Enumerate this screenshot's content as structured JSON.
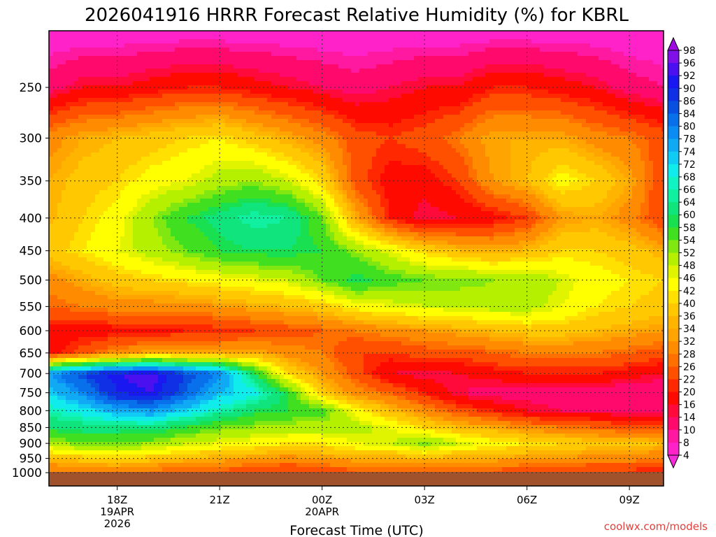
{
  "chart_data": {
    "type": "heatmap",
    "title": "2026041916 HRRR Forecast Relative Humidity (%) for KBRL",
    "xlabel": "Forecast Time (UTC)",
    "ylabel": "",
    "x_ticks": [
      {
        "hour": 18,
        "lines": [
          "18Z",
          "19APR",
          "2026"
        ]
      },
      {
        "hour": 21,
        "lines": [
          "21Z"
        ]
      },
      {
        "hour": 24,
        "lines": [
          "00Z",
          "20APR"
        ]
      },
      {
        "hour": 27,
        "lines": [
          "03Z"
        ]
      },
      {
        "hour": 30,
        "lines": [
          "06Z"
        ]
      },
      {
        "hour": 33,
        "lines": [
          "09Z"
        ]
      }
    ],
    "xlim_hours": [
      16,
      34
    ],
    "y_ticks": [
      250,
      300,
      350,
      400,
      450,
      500,
      550,
      600,
      650,
      700,
      750,
      800,
      850,
      900,
      950,
      1000
    ],
    "ylim_hPa": [
      1000,
      200
    ],
    "y_scale": "log-pressure",
    "grid": true,
    "colorbar": {
      "labels": [
        98,
        96,
        92,
        90,
        86,
        84,
        80,
        78,
        74,
        72,
        68,
        66,
        64,
        60,
        58,
        54,
        52,
        48,
        46,
        42,
        40,
        36,
        34,
        32,
        28,
        26,
        22,
        20,
        16,
        14,
        10,
        8,
        4
      ],
      "colors": [
        "#a00ae0",
        "#8010e8",
        "#4a10f0",
        "#1a18f0",
        "#1030e6",
        "#0a50e0",
        "#0870ea",
        "#0a8cf4",
        "#10aaf4",
        "#10ccf4",
        "#10ecec",
        "#10f4c4",
        "#10f0a0",
        "#10e47c",
        "#18e050",
        "#40e020",
        "#80e810",
        "#b4f000",
        "#e0f400",
        "#ffff00",
        "#ffe000",
        "#ffc800",
        "#ffb400",
        "#ffa400",
        "#ff8c00",
        "#ff7000",
        "#ff5000",
        "#ff2800",
        "#ff0a00",
        "#ff0a3a",
        "#ff0a6c",
        "#ff18a0",
        "#ff22c8",
        "#f32bd8"
      ],
      "placement": "right"
    },
    "levels_hPa": [
      200,
      250,
      300,
      350,
      400,
      450,
      500,
      550,
      600,
      650,
      700,
      750,
      800,
      850,
      900,
      950,
      990
    ],
    "columns": [
      {
        "hour": 16,
        "rh": [
          4,
          12,
          30,
          34,
          35,
          38,
          30,
          26,
          18,
          18,
          78,
          72,
          66,
          60,
          50,
          36,
          28
        ]
      },
      {
        "hour": 17,
        "rh": [
          4,
          16,
          34,
          38,
          40,
          42,
          34,
          28,
          18,
          24,
          86,
          80,
          70,
          62,
          54,
          38,
          30
        ]
      },
      {
        "hour": 18,
        "rh": [
          4,
          16,
          36,
          40,
          44,
          46,
          38,
          30,
          18,
          30,
          92,
          90,
          76,
          62,
          54,
          40,
          30
        ]
      },
      {
        "hour": 19,
        "rh": [
          4,
          18,
          38,
          44,
          52,
          50,
          40,
          30,
          18,
          34,
          94,
          92,
          78,
          62,
          52,
          38,
          28
        ]
      },
      {
        "hour": 20,
        "rh": [
          4,
          20,
          40,
          46,
          58,
          54,
          42,
          30,
          20,
          34,
          86,
          84,
          72,
          58,
          48,
          36,
          26
        ]
      },
      {
        "hour": 21,
        "rh": [
          4,
          20,
          42,
          50,
          62,
          58,
          44,
          32,
          20,
          34,
          80,
          74,
          66,
          54,
          46,
          34,
          26
        ]
      },
      {
        "hour": 22,
        "rh": [
          4,
          18,
          38,
          52,
          66,
          60,
          46,
          34,
          22,
          34,
          60,
          70,
          60,
          52,
          44,
          32,
          24
        ]
      },
      {
        "hour": 23,
        "rh": [
          4,
          16,
          34,
          48,
          64,
          60,
          48,
          36,
          24,
          30,
          40,
          58,
          58,
          50,
          42,
          30,
          22
        ]
      },
      {
        "hour": 24,
        "rh": [
          4,
          14,
          30,
          40,
          54,
          58,
          54,
          38,
          26,
          28,
          32,
          38,
          56,
          50,
          42,
          32,
          24
        ]
      },
      {
        "hour": 25,
        "rh": [
          4,
          12,
          24,
          24,
          34,
          52,
          60,
          44,
          28,
          22,
          24,
          30,
          44,
          50,
          46,
          34,
          26
        ]
      },
      {
        "hour": 26,
        "rh": [
          4,
          14,
          22,
          18,
          20,
          46,
          56,
          46,
          30,
          22,
          16,
          26,
          36,
          46,
          48,
          34,
          26
        ]
      },
      {
        "hour": 27,
        "rh": [
          4,
          16,
          24,
          18,
          14,
          40,
          54,
          48,
          32,
          24,
          14,
          20,
          30,
          40,
          54,
          34,
          26
        ]
      },
      {
        "hour": 28,
        "rh": [
          4,
          16,
          28,
          22,
          16,
          36,
          54,
          48,
          34,
          24,
          16,
          14,
          24,
          36,
          48,
          34,
          26
        ]
      },
      {
        "hour": 29,
        "rh": [
          4,
          20,
          34,
          32,
          18,
          34,
          52,
          50,
          36,
          26,
          18,
          12,
          20,
          34,
          44,
          34,
          26
        ]
      },
      {
        "hour": 30,
        "rh": [
          4,
          20,
          34,
          36,
          22,
          36,
          52,
          50,
          38,
          28,
          20,
          12,
          16,
          30,
          42,
          32,
          24
        ]
      },
      {
        "hour": 31,
        "rh": [
          4,
          18,
          34,
          44,
          32,
          40,
          48,
          46,
          38,
          28,
          20,
          12,
          14,
          28,
          40,
          32,
          24
        ]
      },
      {
        "hour": 32,
        "rh": [
          4,
          16,
          30,
          40,
          34,
          40,
          44,
          42,
          36,
          28,
          20,
          12,
          14,
          26,
          38,
          30,
          22
        ]
      },
      {
        "hour": 33,
        "rh": [
          4,
          12,
          28,
          34,
          30,
          38,
          42,
          40,
          34,
          26,
          18,
          10,
          12,
          24,
          38,
          30,
          22
        ]
      },
      {
        "hour": 34,
        "rh": [
          4,
          10,
          24,
          22,
          22,
          34,
          40,
          38,
          32,
          24,
          16,
          10,
          12,
          24,
          36,
          28,
          20
        ]
      }
    ],
    "ground_color": "#a0522d",
    "credit": "coolwx.com/models"
  }
}
